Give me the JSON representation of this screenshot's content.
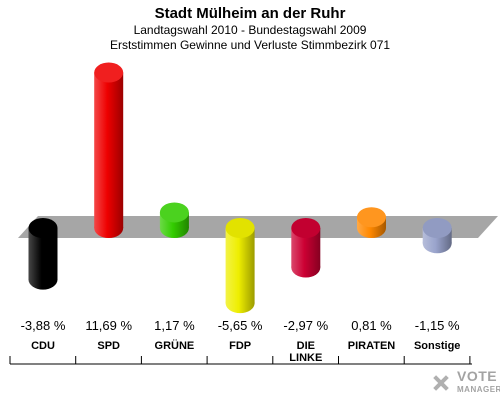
{
  "chart_data": {
    "type": "bar",
    "title": "Stadt Mülheim an der Ruhr",
    "subtitle": "Landtagswahl 2010 - Bundestagswahl 2009",
    "subtitle2": "Erststimmen Gewinne und Verluste Stimmbezirk 071",
    "categories": [
      "CDU",
      "SPD",
      "GRÜNE",
      "FDP",
      "DIE LINKE",
      "PIRATEN",
      "Sonstige"
    ],
    "category_lines": [
      [
        "CDU"
      ],
      [
        "SPD"
      ],
      [
        "GRÜNE"
      ],
      [
        "FDP"
      ],
      [
        "DIE",
        "LINKE"
      ],
      [
        "PIRATEN"
      ],
      [
        "Sonstige"
      ]
    ],
    "values": [
      -3.88,
      11.69,
      1.17,
      -5.65,
      -2.97,
      0.81,
      -1.15
    ],
    "value_labels": [
      "-3,88 %",
      "11,69 %",
      "1,17 %",
      "-5,65 %",
      "-2,97 %",
      "0,81 %",
      "-1,15 %"
    ],
    "colors": [
      "#000000",
      "#ee0000",
      "#33cc00",
      "#eeee00",
      "#cc0033",
      "#ff8800",
      "#99a3cc"
    ],
    "ylim": [
      -6,
      12
    ],
    "legend": "none",
    "grid": false
  },
  "watermark": {
    "line1": "VOTE",
    "line2": "MANAGER"
  }
}
